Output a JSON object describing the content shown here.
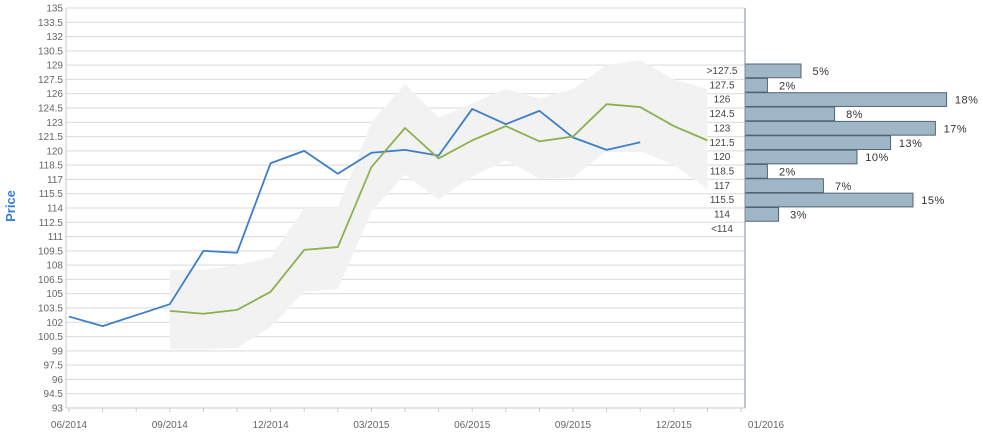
{
  "chart_data": {
    "type": "line",
    "ylabel": "Price",
    "ylim": [
      93,
      135
    ],
    "y_ticks": [
      "93",
      "94.5",
      "96",
      "97.5",
      "99",
      "100.5",
      "102",
      "103.5",
      "105",
      "106.5",
      "108",
      "109.5",
      "111",
      "112.5",
      "114",
      "115.5",
      "117",
      "118.5",
      "120",
      "121.5",
      "123",
      "124.5",
      "126",
      "127.5",
      "129",
      "130.5",
      "132",
      "133.5",
      "135"
    ],
    "x_tick_labels": [
      "06/2014",
      "09/2014",
      "12/2014",
      "03/2015",
      "06/2015",
      "09/2015",
      "12/2015",
      "01/2016"
    ],
    "series": [
      {
        "color": "#3c7ec8",
        "x": [
          "2014-06",
          "2014-07",
          "2014-09",
          "2014-10",
          "2014-11",
          "2014-12",
          "2015-01",
          "2015-02",
          "2015-03",
          "2015-04",
          "2015-05",
          "2015-06",
          "2015-07",
          "2015-08",
          "2015-09",
          "2015-10",
          "2015-11"
        ],
        "values": [
          102.6,
          101.6,
          103.9,
          109.5,
          109.3,
          118.7,
          120.0,
          117.6,
          119.8,
          120.1,
          119.5,
          124.4,
          122.8,
          124.2,
          121.4,
          120.1,
          120.9
        ]
      },
      {
        "color": "#8db04f",
        "x": [
          "2014-09",
          "2014-10",
          "2014-11",
          "2014-12",
          "2015-01",
          "2015-02",
          "2015-03",
          "2015-04",
          "2015-05",
          "2015-06",
          "2015-07",
          "2015-08",
          "2015-09",
          "2015-10",
          "2015-11",
          "2015-12",
          "2016-01"
        ],
        "values": [
          103.2,
          102.9,
          103.3,
          105.2,
          109.6,
          109.9,
          118.3,
          122.4,
          119.2,
          121.1,
          122.6,
          121.0,
          121.5,
          124.9,
          124.6,
          122.6,
          121.1
        ]
      }
    ],
    "band": {
      "color": "#f2f2f2",
      "x": [
        "2014-09",
        "2014-10",
        "2014-11",
        "2014-12",
        "2015-01",
        "2015-02",
        "2015-03",
        "2015-04",
        "2015-05",
        "2015-06",
        "2015-07",
        "2015-08",
        "2015-09",
        "2015-10",
        "2015-11",
        "2015-12",
        "2016-01"
      ],
      "upper": [
        107.5,
        107.5,
        108.0,
        108.8,
        114.0,
        114.0,
        123.0,
        127.0,
        123.5,
        125.0,
        126.5,
        125.5,
        126.5,
        129.0,
        129.5,
        127.5,
        126.5
      ],
      "lower": [
        99.2,
        99.2,
        99.3,
        101.5,
        105.2,
        105.5,
        113.6,
        117.5,
        114.9,
        117.3,
        119.0,
        117.1,
        117.2,
        120.0,
        120.0,
        118.5,
        116.0
      ]
    },
    "histogram": {
      "bar_color": "#9fb6c6",
      "bins": [
        {
          "label": ">127.5",
          "value": 5,
          "text": "5%"
        },
        {
          "label": "127.5",
          "value": 2,
          "text": "2%"
        },
        {
          "label": "126",
          "value": 18,
          "text": "18%"
        },
        {
          "label": "124.5",
          "value": 8,
          "text": "8%"
        },
        {
          "label": "123",
          "value": 17,
          "text": "17%"
        },
        {
          "label": "121.5",
          "value": 13,
          "text": "13%"
        },
        {
          "label": "120",
          "value": 10,
          "text": "10%"
        },
        {
          "label": "118.5",
          "value": 2,
          "text": "2%"
        },
        {
          "label": "117",
          "value": 7,
          "text": "7%"
        },
        {
          "label": "115.5",
          "value": 15,
          "text": "15%"
        },
        {
          "label": "114",
          "value": 3,
          "text": "3%"
        },
        {
          "label": "<114",
          "value": 0,
          "text": ""
        }
      ]
    }
  }
}
